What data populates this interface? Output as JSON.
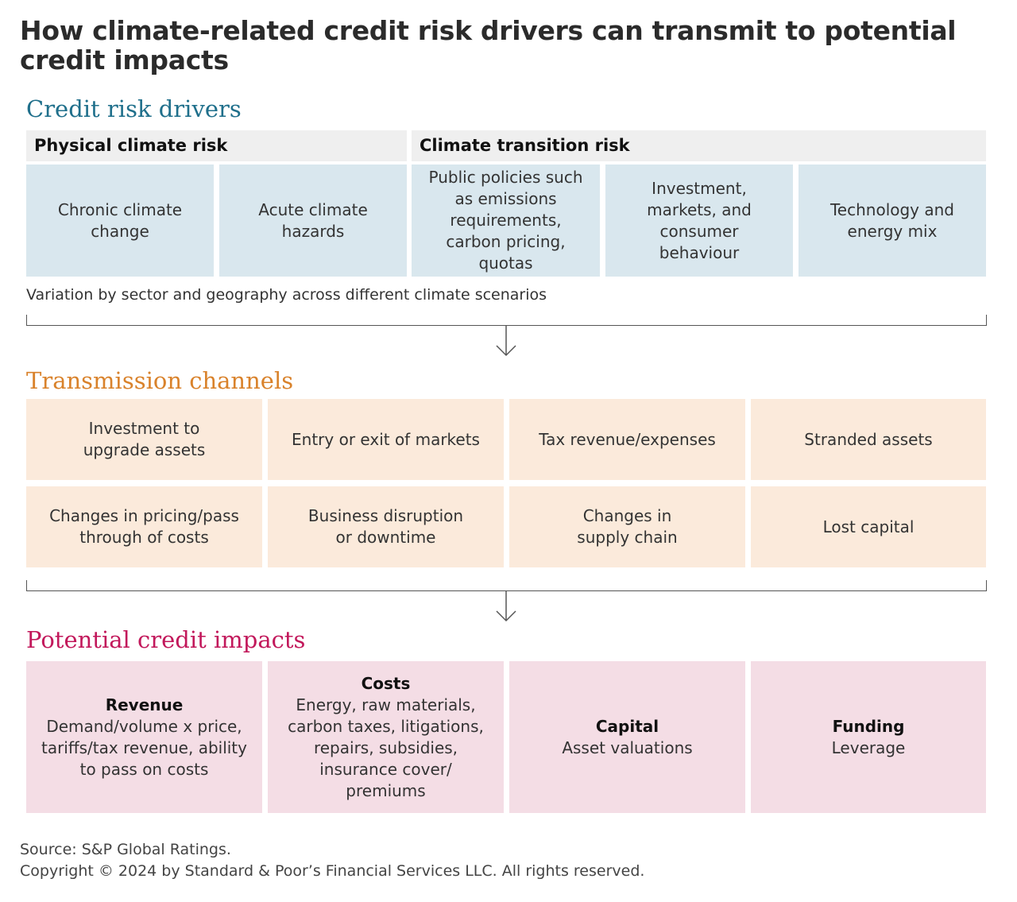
{
  "title": "How climate-related credit risk drivers can transmit to potential credit impacts",
  "colors": {
    "drivers_accent": "#1f6f8b",
    "drivers_fill": "#d9e7ee",
    "channels_accent": "#d9822b",
    "channels_fill": "#fbeadb",
    "impacts_accent": "#c2185b",
    "impacts_fill": "#f4dde5"
  },
  "drivers": {
    "heading": "Credit risk drivers",
    "physical_header": "Physical climate risk",
    "transition_header": "Climate transition risk",
    "items": [
      "Chronic climate change",
      "Acute climate hazards",
      "Public policies such as emissions requirements, carbon pricing, quotas",
      "Investment, markets, and consumer behaviour",
      "Technology and energy mix"
    ],
    "caption": "Variation by sector and geography across different climate scenarios"
  },
  "channels": {
    "heading": "Transmission channels",
    "items": [
      "Investment to upgrade assets",
      "Entry or exit of markets",
      "Tax revenue/expenses",
      "Stranded assets",
      "Changes in pricing/pass through of costs",
      "Business disruption or downtime",
      "Changes in supply chain",
      "Lost capital"
    ]
  },
  "impacts": {
    "heading": "Potential credit impacts",
    "items": [
      {
        "title": "Revenue",
        "desc": "Demand/volume x price, tariffs/tax revenue, ability to pass on costs"
      },
      {
        "title": "Costs",
        "desc": "Energy, raw materials, carbon taxes, litigations, repairs, subsidies, insurance cover/ premiums"
      },
      {
        "title": "Capital",
        "desc": "Asset valuations"
      },
      {
        "title": "Funding",
        "desc": "Leverage"
      }
    ]
  },
  "footer": {
    "source": "Source: S&P Global Ratings.",
    "copyright": "Copyright © 2024 by Standard & Poor’s Financial Services LLC. All rights reserved."
  }
}
